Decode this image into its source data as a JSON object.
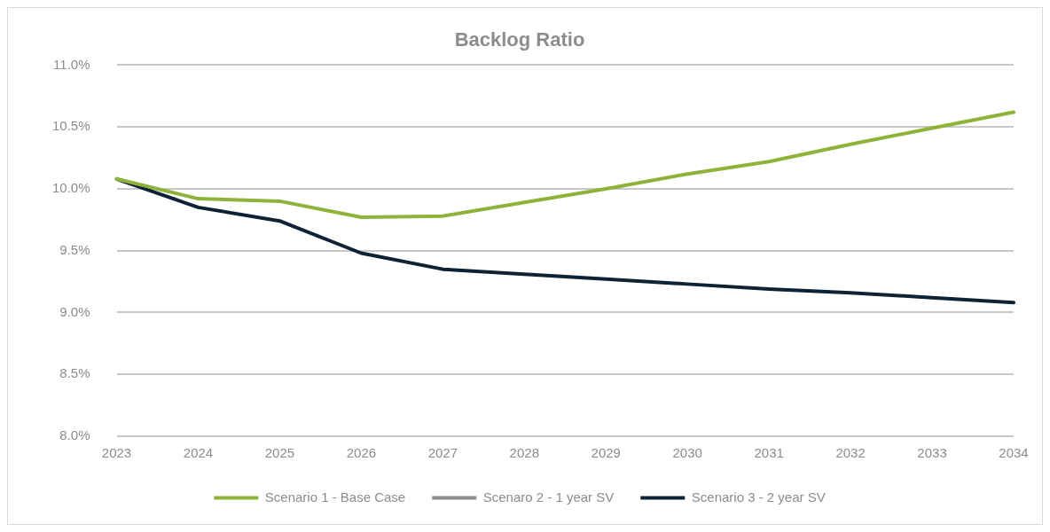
{
  "chart_data": {
    "type": "line",
    "title": "Backlog Ratio",
    "categories": [
      "2023",
      "2024",
      "2025",
      "2026",
      "2027",
      "2028",
      "2029",
      "2030",
      "2031",
      "2032",
      "2033",
      "2034"
    ],
    "series": [
      {
        "name": "Scenario 1 - Base Case",
        "color": "#8db33a",
        "values": [
          10.08,
          9.92,
          9.9,
          9.77,
          9.78,
          9.89,
          10.0,
          10.12,
          10.22,
          10.36,
          10.49,
          10.62
        ]
      },
      {
        "name": "Scenaro 2 - 1 year SV",
        "color": "#8c8c8c",
        "values": [
          null,
          null,
          null,
          null,
          null,
          null,
          null,
          null,
          null,
          null,
          null,
          null
        ]
      },
      {
        "name": "Scenario 3 - 2 year SV",
        "color": "#0d2235",
        "values": [
          10.08,
          9.85,
          9.74,
          9.48,
          9.35,
          9.31,
          9.27,
          9.23,
          9.19,
          9.16,
          9.12,
          9.08
        ]
      }
    ],
    "ylim": [
      8.0,
      11.0
    ],
    "yticks": [
      {
        "value": 8.0,
        "label": "8.0%"
      },
      {
        "value": 8.5,
        "label": "8.5%"
      },
      {
        "value": 9.0,
        "label": "9.0%"
      },
      {
        "value": 9.5,
        "label": "9.5%"
      },
      {
        "value": 10.0,
        "label": "10.0%"
      },
      {
        "value": 10.5,
        "label": "10.5%"
      },
      {
        "value": 11.0,
        "label": "11.0%"
      }
    ],
    "grid": "y",
    "legend": "bottom",
    "marker": "none",
    "line_style": "solid"
  }
}
